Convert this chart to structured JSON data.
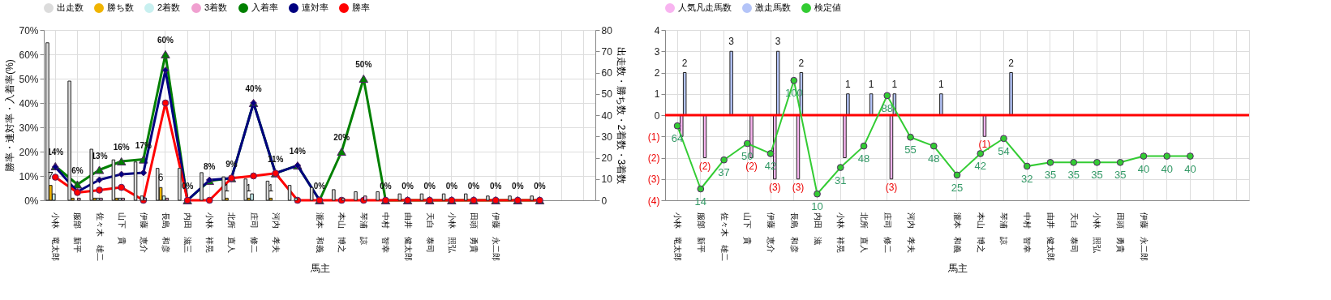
{
  "chart_data": [
    {
      "type": "bar",
      "xlabel": "馬主",
      "ylabel": "勝率・連対率・入着率(%)",
      "y2label": "出走数・勝ち数・2着数・3着数",
      "categories": [
        "小林　竜太郎",
        "服部　新平",
        "佐々木　雄二",
        "山下　貴",
        "伊藤　恵介",
        "長島　和彦",
        "内田　滋三",
        "小林　祥晃",
        "北所　直人",
        "庄司　修二",
        "河内　孝夫",
        null,
        "瀧本　和義",
        "本山　博之",
        "琴浦　諒",
        "中村　智幸",
        "由井　健太郎",
        "天白　泰司",
        "小林　照弘",
        "田頭　勇貴",
        "伊藤　永二郎",
        null,
        null,
        null,
        null
      ],
      "ylim": [
        0,
        70
      ],
      "yticks": [
        {
          "value": 0,
          "label": "0%"
        },
        {
          "value": 10,
          "label": "10%"
        },
        {
          "value": 20,
          "label": "20%"
        },
        {
          "value": 30,
          "label": "30%"
        },
        {
          "value": 40,
          "label": "40%"
        },
        {
          "value": 50,
          "label": "50%"
        },
        {
          "value": 60,
          "label": "60%"
        },
        {
          "value": 70,
          "label": "70%"
        }
      ],
      "y2lim": [
        0,
        80
      ],
      "y2ticks": [
        0,
        10,
        20,
        30,
        40,
        50,
        60,
        70,
        80
      ],
      "grid": true,
      "legend": "top",
      "series": [
        {
          "name": "出走数",
          "axis": "y2",
          "color": "#dcdcdc",
          "values": [
            74,
            56,
            24,
            19,
            18,
            15,
            15,
            13,
            11,
            10,
            9,
            7,
            6,
            5,
            4,
            4,
            3,
            3,
            3,
            3,
            2,
            2,
            2,
            null,
            null
          ]
        },
        {
          "name": "勝ち数",
          "axis": "y2",
          "color": "#f0b400",
          "values": [
            7,
            1,
            1,
            1,
            0,
            6,
            0,
            0,
            1,
            1,
            1,
            0,
            0,
            0,
            0,
            0,
            0,
            0,
            0,
            0,
            0,
            0,
            0,
            null,
            null
          ],
          "value_labels": [
            "7",
            null,
            null,
            null,
            null,
            "6",
            null,
            null,
            "1",
            "1",
            "1",
            null,
            null,
            null,
            null,
            null,
            null,
            null,
            null,
            null,
            null,
            null,
            null,
            null,
            null
          ]
        },
        {
          "name": "2着数",
          "axis": "y2",
          "color": "#c8f0f0",
          "values": [
            3,
            0,
            1,
            1,
            2,
            2,
            0,
            0,
            0,
            3,
            0,
            1,
            0,
            0,
            0,
            0,
            0,
            0,
            0,
            0,
            0,
            0,
            0,
            null,
            null
          ]
        },
        {
          "name": "3着数",
          "axis": "y2",
          "color": "#f0a0d0",
          "values": [
            0,
            1,
            1,
            1,
            1,
            1,
            0,
            0,
            0,
            0,
            0,
            0,
            0,
            1,
            2,
            0,
            0,
            0,
            0,
            0,
            0,
            0,
            0,
            null,
            null
          ]
        },
        {
          "name": "入着率",
          "type": "line",
          "axis": "y",
          "color": "#008000",
          "marker": "triangle",
          "values": [
            14,
            6.5,
            12.5,
            16,
            16.8,
            60,
            0,
            8,
            9.1,
            40,
            11.1,
            14.3,
            0,
            20,
            50,
            0,
            0,
            0,
            0,
            0,
            0,
            0,
            0,
            null,
            null
          ],
          "value_labels": [
            "14%",
            "6%",
            "13%",
            "16%",
            "17%",
            "60%",
            "0%",
            "8%",
            "9%",
            "40%",
            "11%",
            "14%",
            "0%",
            "20%",
            "50%",
            "0%",
            "0%",
            "0%",
            "0%",
            "0%",
            "0%",
            "0%",
            "0%",
            null,
            null
          ]
        },
        {
          "name": "連対率",
          "type": "line",
          "axis": "y",
          "color": "#000080",
          "marker": "diamond",
          "values": [
            13.7,
            3.5,
            8.4,
            10.7,
            11.3,
            53.5,
            0,
            8.3,
            9.1,
            40,
            11.1,
            14.3,
            0,
            null,
            null,
            null,
            null,
            null,
            null,
            null,
            null,
            null,
            null,
            null,
            null
          ]
        },
        {
          "name": "勝率",
          "type": "line",
          "axis": "y",
          "color": "#ff0000",
          "marker": "circle",
          "values": [
            9.5,
            3.2,
            4.2,
            5.3,
            0,
            40,
            0,
            0,
            9.1,
            10,
            11.1,
            0,
            0,
            0,
            0,
            0,
            0,
            0,
            0,
            0,
            0,
            0,
            0,
            null,
            null
          ]
        }
      ]
    },
    {
      "type": "bar",
      "xlabel": "馬主",
      "categories": [
        "小林　竜太郎",
        "服部　新平",
        "佐々木　雄二",
        "山下　貴",
        "伊藤　恵介",
        "長島　和彦",
        "内田　滋",
        "小林　祥晃",
        "北所　直人",
        "庄司　修二",
        "河内　孝夫",
        null,
        "瀧本　和義",
        "本山　博之",
        "琴浦　諒",
        "中村　智幸",
        "由井　健太郎",
        "天白　泰司",
        "小林　照弘",
        "田頭　勇貴",
        "伊藤　永二郎",
        null,
        null,
        null,
        null
      ],
      "ylim": [
        -4,
        4
      ],
      "yticks": [
        {
          "value": -4,
          "label": "(4)"
        },
        {
          "value": -3,
          "label": "(3)"
        },
        {
          "value": -2,
          "label": "(2)"
        },
        {
          "value": -1,
          "label": "(1)"
        },
        0,
        1,
        2,
        3,
        4
      ],
      "y2lim": [
        5,
        140
      ],
      "grid": true,
      "legend": "top",
      "ref_lines": [
        {
          "axis": "y",
          "value": 0,
          "color": "#ff0000"
        }
      ],
      "series": [
        {
          "name": "人気凡走馬数",
          "axis": "y",
          "color": "#f8b4f0",
          "values": [
            -1,
            -2,
            0,
            -2,
            -3,
            -3,
            0,
            -2,
            0,
            -3,
            0,
            0,
            0,
            -1,
            0,
            0,
            0,
            0,
            0,
            0,
            0,
            0,
            0,
            null,
            null
          ],
          "value_labels": [
            null,
            "(2)",
            null,
            "(2)",
            "(3)",
            "(3)",
            null,
            null,
            null,
            "(3)",
            null,
            null,
            null,
            "(1)",
            null,
            null,
            null,
            null,
            null,
            null,
            null,
            null,
            null,
            null,
            null
          ]
        },
        {
          "name": "激走馬数",
          "axis": "y",
          "color": "#b4c4f8",
          "values": [
            2,
            0,
            3,
            0,
            3,
            2,
            0,
            1,
            1,
            1,
            0,
            1,
            0,
            0,
            2,
            0,
            0,
            0,
            0,
            0,
            0,
            0,
            0,
            null,
            null
          ],
          "value_labels": [
            "2",
            null,
            "3",
            null,
            "3",
            "2",
            null,
            "1",
            "1",
            "1",
            null,
            "1",
            null,
            null,
            "2",
            null,
            null,
            null,
            null,
            null,
            null,
            null,
            null,
            null,
            null
          ]
        },
        {
          "name": "検定値",
          "type": "line",
          "axis": "y2",
          "color": "#33cc33",
          "marker": "circle",
          "data_labels": true,
          "values": [
            64,
            14,
            37,
            50,
            42,
            100,
            10,
            31,
            48,
            88,
            55,
            48,
            25,
            42,
            54,
            32,
            35,
            35,
            35,
            35,
            40,
            40,
            40,
            null,
            null
          ]
        }
      ]
    }
  ]
}
